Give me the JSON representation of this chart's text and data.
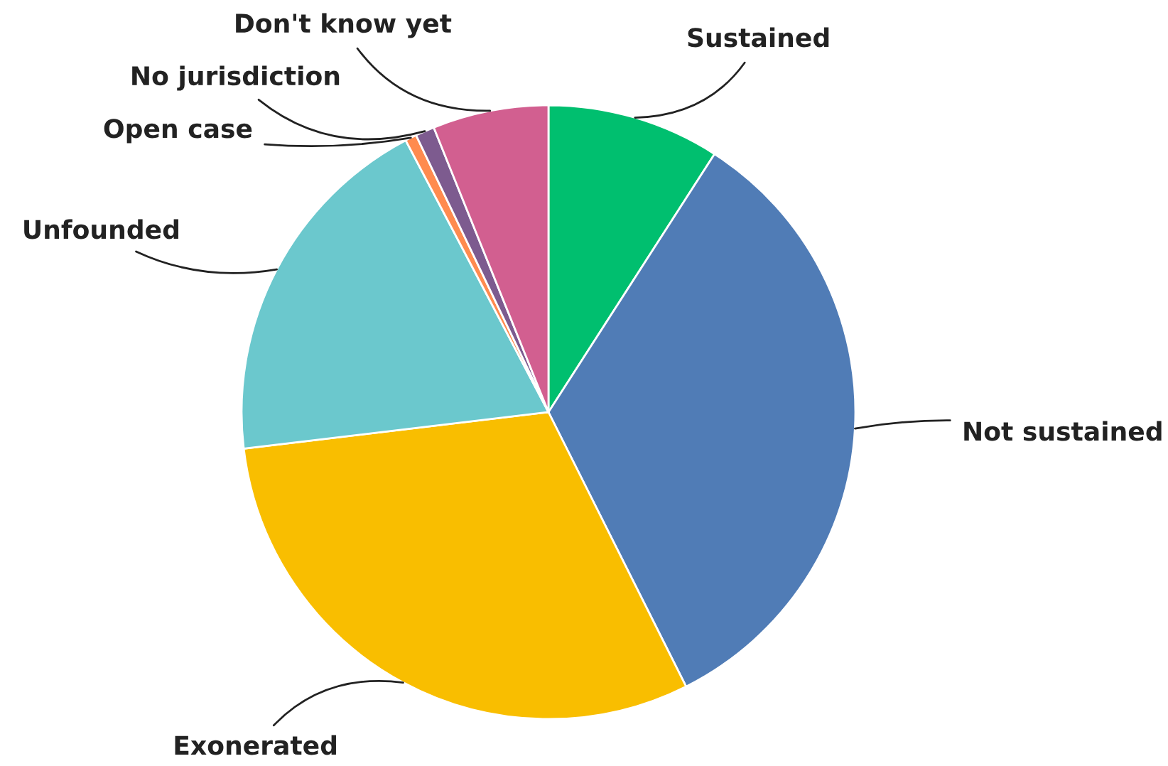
{
  "chart_data": {
    "type": "pie",
    "categories": [
      "Sustained",
      "Not sustained",
      "Exonerated",
      "Unfounded",
      "Open case",
      "No jurisdiction",
      "Don't know yet"
    ],
    "values": [
      9.1,
      33.5,
      30.5,
      19.2,
      0.6,
      1.0,
      6.1
    ],
    "colors": [
      "#00bf6f",
      "#507cb6",
      "#f9be00",
      "#6bc8cd",
      "#ff8b4f",
      "#7d5b8f",
      "#d25f90"
    ]
  }
}
